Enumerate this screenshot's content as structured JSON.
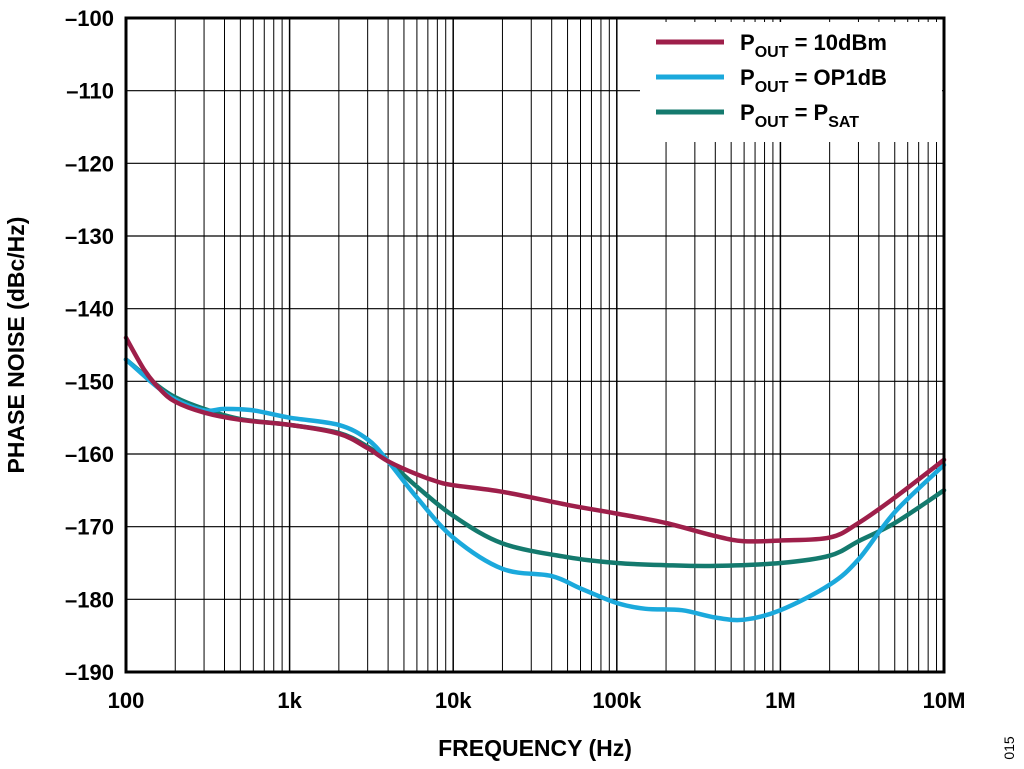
{
  "chart_data": {
    "type": "line",
    "xlabel": "FREQUENCY (Hz)",
    "ylabel": "PHASE NOISE (dBc/Hz)",
    "x_scale": "log",
    "xlim": [
      100,
      10000000
    ],
    "ylim": [
      -190,
      -100
    ],
    "grid": true,
    "legend_position": "top-right",
    "x_ticks": [
      100,
      1000,
      10000,
      100000,
      1000000,
      10000000
    ],
    "x_tick_labels": [
      "100",
      "1k",
      "10k",
      "100k",
      "1M",
      "10M"
    ],
    "y_ticks": [
      -100,
      -110,
      -120,
      -130,
      -140,
      -150,
      -160,
      -170,
      -180,
      -190
    ],
    "y_tick_labels": [
      "–100",
      "–110",
      "–120",
      "–130",
      "–140",
      "–150",
      "–160",
      "–170",
      "–180",
      "–190"
    ],
    "series": [
      {
        "name": "POUT = 10dBm",
        "legend": {
          "main": "P",
          "sub": "OUT",
          "rest": " = 10dBm",
          "sub2": ""
        },
        "color": "#9e1f4a",
        "points": [
          [
            100,
            -144
          ],
          [
            130,
            -148.5
          ],
          [
            160,
            -151
          ],
          [
            200,
            -152.8
          ],
          [
            300,
            -154.3
          ],
          [
            500,
            -155.3
          ],
          [
            1000,
            -156
          ],
          [
            2000,
            -157.2
          ],
          [
            3000,
            -159.2
          ],
          [
            4000,
            -161
          ],
          [
            6000,
            -162.8
          ],
          [
            8000,
            -163.8
          ],
          [
            10000,
            -164.3
          ],
          [
            20000,
            -165.2
          ],
          [
            50000,
            -167
          ],
          [
            100000,
            -168.2
          ],
          [
            200000,
            -169.5
          ],
          [
            400000,
            -171.3
          ],
          [
            600000,
            -172
          ],
          [
            1000000,
            -171.9
          ],
          [
            2000000,
            -171.5
          ],
          [
            3000000,
            -169.5
          ],
          [
            5000000,
            -166
          ],
          [
            10000000,
            -160.8
          ]
        ]
      },
      {
        "name": "POUT = OP1dB",
        "legend": {
          "main": "P",
          "sub": "OUT",
          "rest": " = OP1dB",
          "sub2": ""
        },
        "color": "#1ba9dc",
        "points": [
          [
            100,
            -147
          ],
          [
            150,
            -150.5
          ],
          [
            200,
            -152.5
          ],
          [
            300,
            -154
          ],
          [
            400,
            -153.8
          ],
          [
            600,
            -154
          ],
          [
            1000,
            -155
          ],
          [
            2000,
            -156
          ],
          [
            3000,
            -158
          ],
          [
            4000,
            -161
          ],
          [
            6000,
            -166
          ],
          [
            10000,
            -171.5
          ],
          [
            20000,
            -175.8
          ],
          [
            40000,
            -176.8
          ],
          [
            60000,
            -178.5
          ],
          [
            100000,
            -180.5
          ],
          [
            150000,
            -181.3
          ],
          [
            250000,
            -181.5
          ],
          [
            400000,
            -182.5
          ],
          [
            600000,
            -182.8
          ],
          [
            1000000,
            -181.5
          ],
          [
            2000000,
            -178
          ],
          [
            3000000,
            -174.5
          ],
          [
            5000000,
            -168
          ],
          [
            10000000,
            -161.5
          ]
        ]
      },
      {
        "name": "POUT = PSAT",
        "legend": {
          "main": "P",
          "sub": "OUT",
          "rest": " = P",
          "sub2": "SAT"
        },
        "color": "#147a6e",
        "points": [
          [
            100,
            -147
          ],
          [
            150,
            -150.3
          ],
          [
            200,
            -152.2
          ],
          [
            300,
            -153.8
          ],
          [
            500,
            -155.2
          ],
          [
            1000,
            -156
          ],
          [
            2000,
            -157.1
          ],
          [
            3000,
            -159
          ],
          [
            4000,
            -161
          ],
          [
            6000,
            -164.5
          ],
          [
            10000,
            -168.5
          ],
          [
            20000,
            -172.3
          ],
          [
            50000,
            -174.2
          ],
          [
            100000,
            -175
          ],
          [
            200000,
            -175.3
          ],
          [
            400000,
            -175.4
          ],
          [
            1000000,
            -175
          ],
          [
            2000000,
            -174
          ],
          [
            3000000,
            -172
          ],
          [
            5000000,
            -169.5
          ],
          [
            10000000,
            -165
          ]
        ]
      }
    ]
  },
  "figure_id": "015"
}
